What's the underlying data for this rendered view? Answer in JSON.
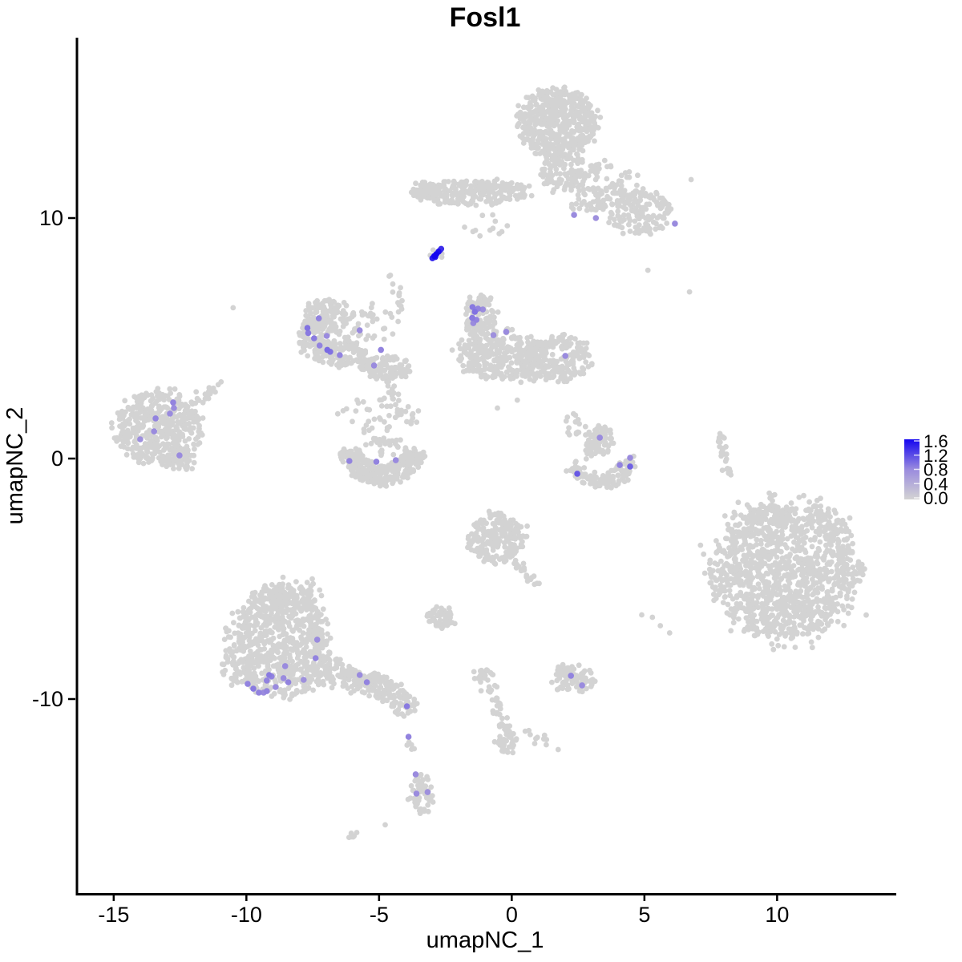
{
  "title": "Fosl1",
  "colors": {
    "background": "#FFFFFF",
    "axis": "#000000",
    "point_low": "#D3D3D3",
    "point_mid": "#9A8BDE",
    "point_high": "#1405F0"
  },
  "legend": {
    "max": 1.6,
    "min": 0.0,
    "ticks": [
      {
        "value": 1.6,
        "label": "1.6"
      },
      {
        "value": 1.2,
        "label": "1.2"
      },
      {
        "value": 0.8,
        "label": "0.8"
      },
      {
        "value": 0.4,
        "label": "0.4"
      },
      {
        "value": 0.0,
        "label": "0.0"
      }
    ]
  },
  "chart_data": {
    "type": "scatter",
    "title": "Fosl1",
    "xlabel": "umapNC_1",
    "ylabel": "umapNC_2",
    "xlim": [
      -16.4,
      14.4
    ],
    "ylim": [
      -18.1,
      17.5
    ],
    "x_ticks": [
      -15,
      -10,
      -5,
      0,
      5,
      10
    ],
    "y_ticks": [
      10,
      0,
      -10
    ],
    "grid": false,
    "legend_position": "right",
    "color_scale": {
      "low_label": "0.0",
      "high_label": "1.6",
      "low": "#D3D3D3",
      "high": "#1405F0"
    },
    "clusters": [
      {
        "name": "top-main",
        "type": "blob",
        "cx": 1.72,
        "cy": 13.95,
        "rx": 1.45,
        "ry": 1.45,
        "n": 520
      },
      {
        "name": "top-south",
        "type": "blob",
        "cx": 2.0,
        "cy": 11.9,
        "rx": 0.9,
        "ry": 0.75,
        "n": 90
      },
      {
        "name": "top-east-scatter",
        "type": "blob",
        "cx": 3.6,
        "cy": 11.3,
        "rx": 1.3,
        "ry": 1.0,
        "n": 90
      },
      {
        "name": "top-right-lobe",
        "type": "blob",
        "cx": 4.85,
        "cy": 10.2,
        "rx": 1.2,
        "ry": 0.95,
        "n": 150
      },
      {
        "name": "top-right-bridge",
        "type": "blob",
        "cx": 3.0,
        "cy": 10.7,
        "rx": 0.8,
        "ry": 0.5,
        "n": 30
      },
      {
        "name": "top-band",
        "type": "blob",
        "cx": -1.4,
        "cy": 11.05,
        "rx": 2.15,
        "ry": 0.5,
        "n": 260
      },
      {
        "name": "top-band-tip",
        "type": "blob",
        "cx": -3.3,
        "cy": 11.15,
        "rx": 0.5,
        "ry": 0.35,
        "n": 50
      },
      {
        "name": "hotspot-halo",
        "type": "blob",
        "cx": -2.8,
        "cy": 8.55,
        "rx": 0.3,
        "ry": 0.28,
        "n": 8
      },
      {
        "name": "band-underscatter",
        "type": "blob",
        "cx": -0.9,
        "cy": 9.6,
        "rx": 0.9,
        "ry": 0.5,
        "n": 12
      },
      {
        "name": "strand-central-upper",
        "type": "strand",
        "x1": -4.52,
        "y1": 7.7,
        "x2": -4.2,
        "y2": 5.9,
        "n": 14,
        "j": 0.12
      },
      {
        "name": "crescent-west-top",
        "type": "blob",
        "cx": -7.0,
        "cy": 5.9,
        "rx": 0.85,
        "ry": 0.75,
        "n": 110
      },
      {
        "name": "crescent-west-edge",
        "type": "blob",
        "cx": -7.5,
        "cy": 5.0,
        "rx": 0.55,
        "ry": 0.75,
        "n": 80
      },
      {
        "name": "crescent-west-bottom",
        "type": "blob",
        "cx": -6.5,
        "cy": 4.35,
        "rx": 0.95,
        "ry": 0.55,
        "n": 120
      },
      {
        "name": "crescent-west-scatter",
        "type": "blob",
        "cx": -5.6,
        "cy": 5.6,
        "rx": 1.3,
        "ry": 0.9,
        "n": 50
      },
      {
        "name": "dog-head",
        "type": "blob",
        "cx": -1.2,
        "cy": 5.9,
        "rx": 0.6,
        "ry": 0.9,
        "n": 110
      },
      {
        "name": "dog-body",
        "type": "blob",
        "cx": -0.4,
        "cy": 4.3,
        "rx": 1.7,
        "ry": 1.0,
        "n": 300
      },
      {
        "name": "dog-east-lobe",
        "type": "blob",
        "cx": 1.85,
        "cy": 4.15,
        "rx": 1.1,
        "ry": 0.95,
        "n": 170
      },
      {
        "name": "dog-under-scatter",
        "type": "blob",
        "cx": 0.8,
        "cy": 3.6,
        "rx": 0.9,
        "ry": 0.4,
        "n": 40
      },
      {
        "name": "mid-west-blob",
        "type": "blob",
        "cx": -4.75,
        "cy": 3.8,
        "rx": 0.95,
        "ry": 0.5,
        "n": 100
      },
      {
        "name": "strand-central-lower",
        "type": "strand",
        "x1": -4.6,
        "y1": 3.3,
        "x2": -4.3,
        "y2": 1.9,
        "n": 15,
        "j": 0.1
      },
      {
        "name": "far-west-main",
        "type": "blob",
        "cx": -13.35,
        "cy": 1.3,
        "rx": 1.6,
        "ry": 1.55,
        "n": 430
      },
      {
        "name": "far-west-tail",
        "type": "strand",
        "x1": -12.0,
        "y1": 2.3,
        "x2": -10.9,
        "y2": 3.2,
        "n": 22,
        "j": 0.12
      },
      {
        "name": "far-west-foot",
        "type": "blob",
        "cx": -12.5,
        "cy": 0.0,
        "rx": 0.6,
        "ry": 0.5,
        "n": 55
      },
      {
        "name": "u-crescent",
        "type": "arc",
        "cx": -4.9,
        "cy": 0.55,
        "r": 1.25,
        "w": 0.75,
        "a0": 190,
        "a1": 350,
        "n": 330
      },
      {
        "name": "u-crescent-scatter",
        "type": "blob",
        "cx": -4.9,
        "cy": 1.8,
        "rx": 1.6,
        "ry": 0.7,
        "n": 45
      },
      {
        "name": "u-crescent-fill",
        "type": "blob",
        "cx": -4.9,
        "cy": 0.5,
        "rx": 0.7,
        "ry": 0.4,
        "n": 30
      },
      {
        "name": "check-top",
        "type": "blob",
        "cx": 3.3,
        "cy": 0.75,
        "rx": 0.55,
        "ry": 0.6,
        "n": 70
      },
      {
        "name": "check-bottom-arc",
        "type": "arc",
        "cx": 3.35,
        "cy": 0.2,
        "r": 1.15,
        "w": 0.6,
        "a0": 195,
        "a1": 345,
        "n": 130
      },
      {
        "name": "check-scatter",
        "type": "blob",
        "cx": 2.3,
        "cy": 1.4,
        "rx": 0.5,
        "ry": 0.5,
        "n": 15
      },
      {
        "name": "check-bridge",
        "type": "strand",
        "x1": 3.1,
        "y1": 0.9,
        "x2": 2.8,
        "y2": 0.0,
        "n": 10,
        "j": 0.1
      },
      {
        "name": "east-strand",
        "type": "strand",
        "x1": 7.85,
        "y1": 1.0,
        "x2": 8.15,
        "y2": -0.6,
        "n": 26,
        "j": 0.1
      },
      {
        "name": "center-south-blob",
        "type": "blob",
        "cx": -0.55,
        "cy": -3.3,
        "rx": 1.1,
        "ry": 1.05,
        "n": 230
      },
      {
        "name": "center-south-tail",
        "type": "strand",
        "x1": 0.1,
        "y1": -4.3,
        "x2": 0.95,
        "y2": -5.2,
        "n": 18,
        "j": 0.12
      },
      {
        "name": "far-east-main",
        "type": "blob",
        "cx": 10.3,
        "cy": -4.6,
        "rx": 2.7,
        "ry": 2.9,
        "n": 1150
      },
      {
        "name": "far-east-fringe",
        "type": "blob",
        "cx": 10.3,
        "cy": -4.6,
        "rx": 3.2,
        "ry": 3.4,
        "n": 120
      },
      {
        "name": "small-center",
        "type": "blob",
        "cx": -2.7,
        "cy": -6.6,
        "rx": 0.5,
        "ry": 0.45,
        "n": 50
      },
      {
        "name": "southwest-main",
        "type": "blob",
        "cx": -8.7,
        "cy": -7.6,
        "rx": 1.9,
        "ry": 2.3,
        "n": 750
      },
      {
        "name": "southwest-top-scatter",
        "type": "blob",
        "cx": -8.3,
        "cy": -5.6,
        "rx": 1.3,
        "ry": 0.7,
        "n": 60
      },
      {
        "name": "southwest-west-scatter",
        "type": "blob",
        "cx": -10.3,
        "cy": -8.6,
        "rx": 0.6,
        "ry": 0.9,
        "n": 40
      },
      {
        "name": "southwest-bridge",
        "type": "blob",
        "cx": -6.8,
        "cy": -8.9,
        "rx": 0.8,
        "ry": 0.6,
        "n": 80
      },
      {
        "name": "southwest-arm",
        "type": "blob",
        "cx": -5.3,
        "cy": -9.4,
        "rx": 1.3,
        "ry": 0.55,
        "n": 140,
        "rot": -18
      },
      {
        "name": "southwest-arm-tip",
        "type": "blob",
        "cx": -4.1,
        "cy": -10.15,
        "rx": 0.5,
        "ry": 0.5,
        "n": 40
      },
      {
        "name": "south-small",
        "type": "blob",
        "cx": 2.3,
        "cy": -9.2,
        "rx": 0.9,
        "ry": 0.5,
        "n": 75
      },
      {
        "name": "south-small-nub",
        "type": "blob",
        "cx": 1.95,
        "cy": -8.75,
        "rx": 0.25,
        "ry": 0.3,
        "n": 12
      },
      {
        "name": "south-trail-head",
        "type": "blob",
        "cx": -1.05,
        "cy": -9.0,
        "rx": 0.35,
        "ry": 0.3,
        "n": 20
      },
      {
        "name": "south-trail",
        "type": "strand",
        "x1": -0.85,
        "y1": -9.4,
        "x2": -0.2,
        "y2": -11.5,
        "n": 35,
        "j": 0.12
      },
      {
        "name": "south-trail-end",
        "type": "blob",
        "cx": -0.2,
        "cy": -11.8,
        "rx": 0.4,
        "ry": 0.45,
        "n": 35
      },
      {
        "name": "south-trail-scatter",
        "type": "blob",
        "cx": 0.6,
        "cy": -11.6,
        "rx": 0.7,
        "ry": 0.3,
        "n": 12
      },
      {
        "name": "foot-strand",
        "type": "strand",
        "x1": -3.85,
        "y1": -11.8,
        "x2": -3.7,
        "y2": -12.4,
        "n": 5,
        "j": 0.08
      },
      {
        "name": "foot-blob",
        "type": "blob",
        "cx": -3.4,
        "cy": -14.0,
        "rx": 0.42,
        "ry": 0.85,
        "n": 55
      },
      {
        "name": "bottom-dash",
        "type": "strand",
        "x1": -6.1,
        "y1": -15.8,
        "x2": -5.8,
        "y2": -15.5,
        "n": 6,
        "j": 0.06
      }
    ],
    "singles": [
      [
        -4.77,
        -15.23
      ],
      [
        6.7,
        6.93
      ],
      [
        -10.5,
        6.27
      ],
      [
        5.13,
        7.83
      ],
      [
        6.76,
        11.6
      ],
      [
        -0.54,
        2.1
      ],
      [
        0.21,
        2.43
      ],
      [
        1.3,
        -11.9
      ],
      [
        1.75,
        -12.1
      ],
      [
        5.3,
        -6.6
      ],
      [
        5.6,
        -6.95
      ],
      [
        5.95,
        -7.25
      ],
      [
        4.9,
        -6.5
      ]
    ],
    "expressing_cells": [
      [
        2.35,
        10.13,
        0.8
      ],
      [
        3.17,
        10.0,
        0.75
      ],
      [
        6.15,
        9.77,
        0.8
      ],
      [
        -2.99,
        8.33,
        1.45
      ],
      [
        -2.92,
        8.42,
        1.6
      ],
      [
        -2.84,
        8.5,
        1.6
      ],
      [
        -2.76,
        8.6,
        1.55
      ],
      [
        -2.66,
        8.72,
        1.35
      ],
      [
        -2.88,
        8.38,
        1.5
      ],
      [
        -2.71,
        8.65,
        1.25
      ],
      [
        -7.27,
        5.83,
        0.85
      ],
      [
        -7.7,
        5.43,
        0.95
      ],
      [
        -7.67,
        5.22,
        0.9
      ],
      [
        -7.45,
        5.0,
        0.9
      ],
      [
        -7.24,
        4.7,
        0.85
      ],
      [
        -6.97,
        5.1,
        0.8
      ],
      [
        -6.95,
        4.52,
        1.0
      ],
      [
        -6.84,
        4.44,
        0.95
      ],
      [
        -6.48,
        4.3,
        0.85
      ],
      [
        -5.73,
        5.33,
        0.8
      ],
      [
        -4.93,
        4.52,
        0.85
      ],
      [
        -5.19,
        3.87,
        0.8
      ],
      [
        -1.48,
        6.3,
        0.9
      ],
      [
        -1.39,
        6.1,
        0.95
      ],
      [
        -1.27,
        6.23,
        0.85
      ],
      [
        -1.49,
        5.85,
        0.9
      ],
      [
        -1.33,
        5.77,
        0.85
      ],
      [
        -1.45,
        5.63,
        0.8
      ],
      [
        -1.09,
        6.2,
        0.8
      ],
      [
        -0.21,
        5.27,
        0.8
      ],
      [
        -0.69,
        5.13,
        0.75
      ],
      [
        2.02,
        4.27,
        0.8
      ],
      [
        -12.76,
        2.33,
        0.85
      ],
      [
        -12.73,
        2.1,
        0.8
      ],
      [
        -12.88,
        1.87,
        0.8
      ],
      [
        -13.42,
        1.67,
        0.85
      ],
      [
        -13.48,
        1.13,
        0.8
      ],
      [
        -14.0,
        0.8,
        0.75
      ],
      [
        -12.52,
        0.13,
        0.8
      ],
      [
        -6.12,
        -0.1,
        0.85
      ],
      [
        -5.1,
        -0.13,
        0.85
      ],
      [
        -4.37,
        -0.07,
        0.8
      ],
      [
        3.32,
        0.87,
        0.8
      ],
      [
        2.47,
        -0.63,
        1.1
      ],
      [
        4.07,
        -0.27,
        0.85
      ],
      [
        4.46,
        0.03,
        0.8
      ],
      [
        4.46,
        -0.33,
        1.05
      ],
      [
        -7.33,
        -7.53,
        0.8
      ],
      [
        -7.39,
        -8.3,
        0.85
      ],
      [
        -8.54,
        -8.63,
        0.8
      ],
      [
        -9.14,
        -9.0,
        0.9
      ],
      [
        -9.05,
        -9.06,
        0.85
      ],
      [
        -9.23,
        -9.23,
        0.85
      ],
      [
        -8.6,
        -9.13,
        0.8
      ],
      [
        -8.42,
        -9.3,
        0.85
      ],
      [
        -8.9,
        -9.5,
        0.8
      ],
      [
        -9.95,
        -9.37,
        0.85
      ],
      [
        -9.74,
        -9.57,
        0.9
      ],
      [
        -9.53,
        -9.73,
        0.85
      ],
      [
        -9.35,
        -9.73,
        0.8
      ],
      [
        -9.23,
        -9.67,
        0.85
      ],
      [
        -7.84,
        -9.2,
        0.75
      ],
      [
        -5.73,
        -9.0,
        0.8
      ],
      [
        -5.46,
        -9.3,
        0.85
      ],
      [
        -3.95,
        -10.3,
        0.9
      ],
      [
        2.23,
        -9.03,
        0.85
      ],
      [
        2.65,
        -9.43,
        0.8
      ],
      [
        -3.89,
        -11.57,
        0.85
      ],
      [
        -3.62,
        -13.13,
        0.8
      ],
      [
        -3.59,
        -13.93,
        0.8
      ],
      [
        -3.17,
        -13.87,
        0.75
      ]
    ]
  }
}
